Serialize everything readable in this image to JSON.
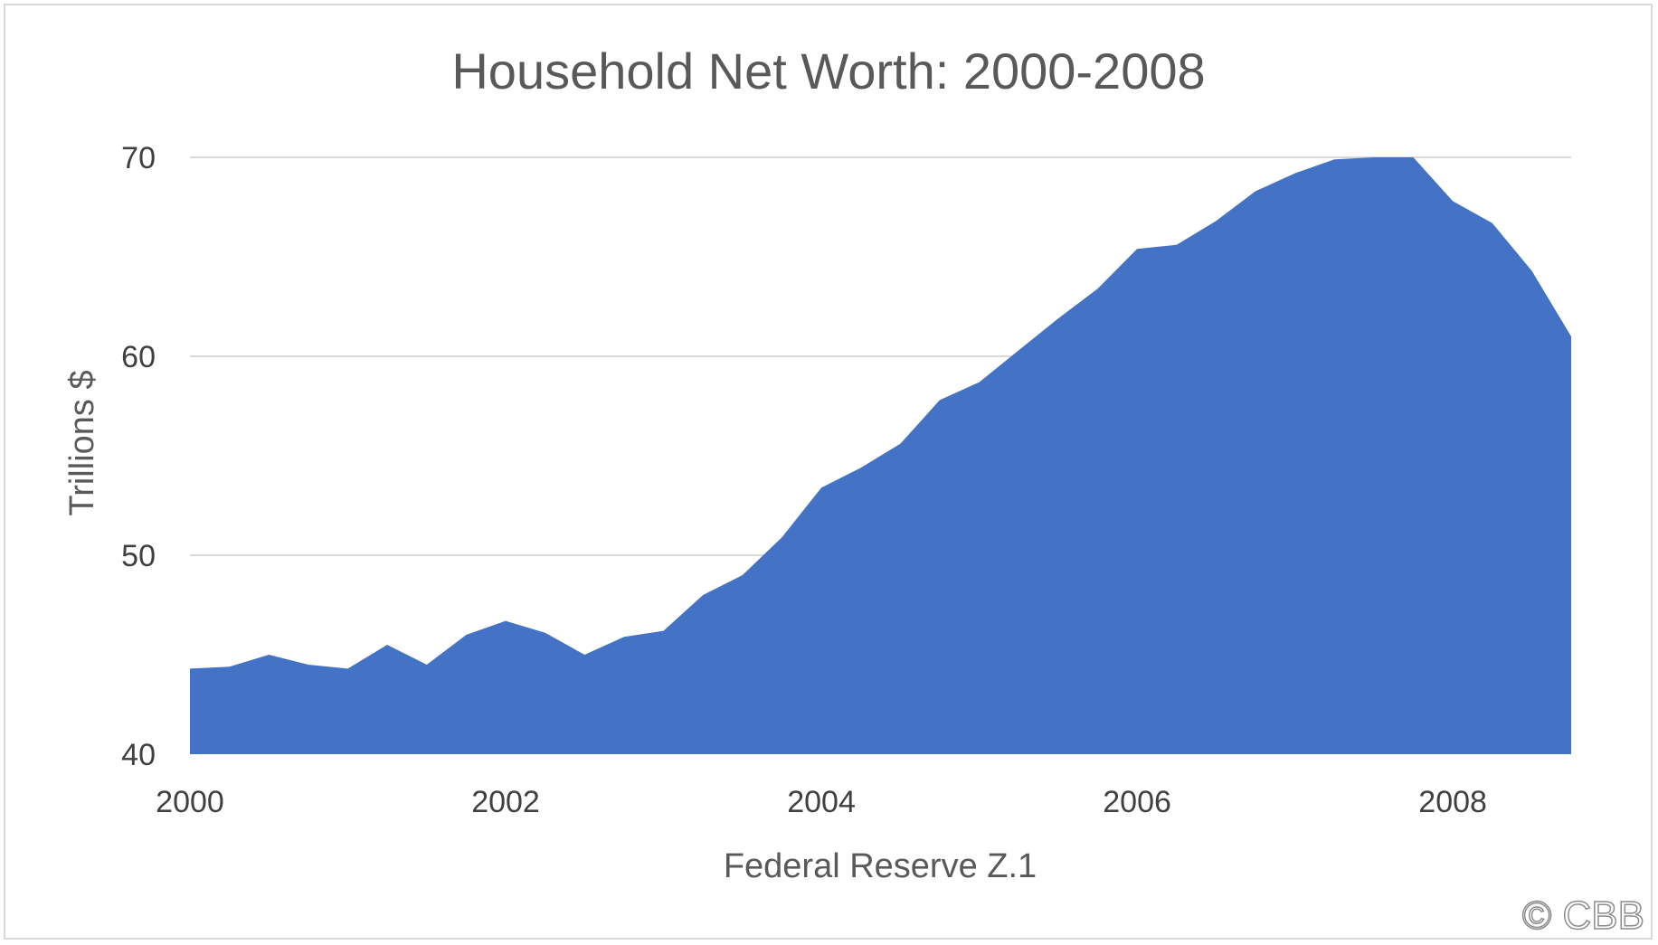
{
  "chart_data": {
    "type": "area",
    "title": "Household Net Worth: 2000-2008",
    "xlabel": "Federal Reserve Z.1",
    "ylabel": "Trillions $",
    "ylim": [
      40,
      70
    ],
    "xlim": [
      2000,
      2008.75
    ],
    "yticks": [
      40,
      50,
      60,
      70
    ],
    "xticks": [
      2000,
      2002,
      2004,
      2006,
      2008
    ],
    "ytick_labels": [
      "40",
      "50",
      "60",
      "70"
    ],
    "xtick_labels": [
      "2000",
      "2002",
      "2004",
      "2006",
      "2008"
    ],
    "grid": true,
    "legend": "none",
    "color": "#4472C4",
    "series": [
      {
        "x": [
          2000.0,
          2000.25,
          2000.5,
          2000.75,
          2001.0,
          2001.25,
          2001.5,
          2001.75,
          2002.0,
          2002.25,
          2002.5,
          2002.75,
          2003.0,
          2003.25,
          2003.5,
          2003.75,
          2004.0,
          2004.25,
          2004.5,
          2004.75,
          2005.0,
          2005.25,
          2005.5,
          2005.75,
          2006.0,
          2006.25,
          2006.5,
          2006.75,
          2007.0,
          2007.25,
          2007.5,
          2007.75,
          2008.0,
          2008.25,
          2008.5,
          2008.75
        ],
        "values": [
          44.3,
          44.4,
          45.0,
          44.5,
          44.3,
          45.5,
          44.5,
          46.0,
          46.7,
          46.1,
          45.0,
          45.9,
          46.2,
          48.0,
          49.0,
          50.9,
          53.4,
          54.4,
          55.6,
          57.8,
          58.7,
          60.3,
          61.9,
          63.4,
          65.4,
          65.6,
          66.8,
          68.3,
          69.2,
          69.9,
          70.0,
          70.0,
          67.8,
          66.7,
          64.3,
          61.0
        ]
      }
    ],
    "watermark": "© CBB"
  }
}
